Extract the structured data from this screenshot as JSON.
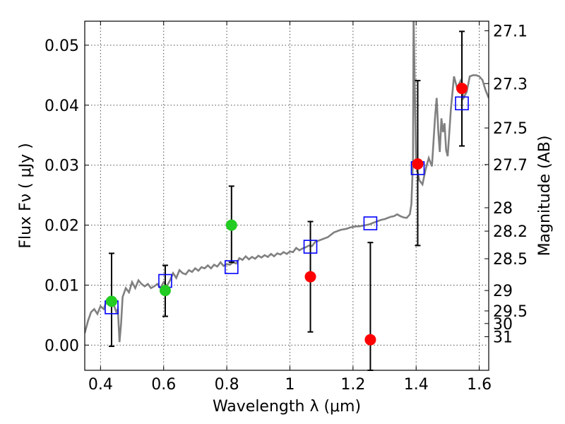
{
  "chart_data": {
    "type": "scatter",
    "xlabel": "Wavelength  λ (μm)",
    "ylabel": "Flux  Fν  ( μJy )",
    "ylabel_right": "Magnitude (AB)",
    "xlim": [
      0.35,
      1.63
    ],
    "ylim": [
      -0.0042,
      0.054
    ],
    "grid": true,
    "x_ticks": [
      0.4,
      0.6,
      0.8,
      1.0,
      1.2,
      1.4,
      1.6
    ],
    "x_tick_labels": [
      "0.4",
      "0.6",
      "0.8",
      "1",
      "1.2",
      "1.4",
      "1.6"
    ],
    "y_ticks": [
      0.0,
      0.01,
      0.02,
      0.03,
      0.04,
      0.05
    ],
    "y_tick_labels": [
      "0.00",
      "0.01",
      "0.02",
      "0.03",
      "0.04",
      "0.05"
    ],
    "right_ticks": [
      {
        "label": "27.1",
        "flux": 0.0524
      },
      {
        "label": "27.3",
        "flux": 0.0436
      },
      {
        "label": "27.5",
        "flux": 0.0362
      },
      {
        "label": "27.7",
        "flux": 0.0301
      },
      {
        "label": "28",
        "flux": 0.0229
      },
      {
        "label": "28.2",
        "flux": 0.019
      },
      {
        "label": "28.5",
        "flux": 0.0144
      },
      {
        "label": "29",
        "flux": 0.0091
      },
      {
        "label": "29.5",
        "flux": 0.0057
      },
      {
        "label": "30",
        "flux": 0.0036
      },
      {
        "label": "31",
        "flux": 0.0014
      }
    ],
    "series": [
      {
        "kind": "model_spectrum",
        "color": "#808080",
        "points": [
          [
            0.35,
            0.002
          ],
          [
            0.36,
            0.004
          ],
          [
            0.37,
            0.0055
          ],
          [
            0.38,
            0.006
          ],
          [
            0.39,
            0.0052
          ],
          [
            0.4,
            0.0065
          ],
          [
            0.41,
            0.006
          ],
          [
            0.42,
            0.0075
          ],
          [
            0.43,
            0.0068
          ],
          [
            0.44,
            0.007
          ],
          [
            0.45,
            0.0055
          ],
          [
            0.455,
            0.006
          ],
          [
            0.46,
            0.0005
          ],
          [
            0.465,
            0.0035
          ],
          [
            0.47,
            0.008
          ],
          [
            0.48,
            0.0095
          ],
          [
            0.49,
            0.0088
          ],
          [
            0.5,
            0.0105
          ],
          [
            0.51,
            0.0095
          ],
          [
            0.52,
            0.0108
          ],
          [
            0.53,
            0.0102
          ],
          [
            0.54,
            0.0098
          ],
          [
            0.55,
            0.0102
          ],
          [
            0.56,
            0.0095
          ],
          [
            0.57,
            0.0098
          ],
          [
            0.58,
            0.0102
          ],
          [
            0.59,
            0.0095
          ],
          [
            0.6,
            0.0105
          ],
          [
            0.61,
            0.0098
          ],
          [
            0.62,
            0.0108
          ],
          [
            0.63,
            0.012
          ],
          [
            0.64,
            0.0112
          ],
          [
            0.65,
            0.0125
          ],
          [
            0.66,
            0.012
          ],
          [
            0.67,
            0.0118
          ],
          [
            0.68,
            0.0125
          ],
          [
            0.69,
            0.0122
          ],
          [
            0.7,
            0.0128
          ],
          [
            0.71,
            0.0124
          ],
          [
            0.72,
            0.013
          ],
          [
            0.73,
            0.0128
          ],
          [
            0.74,
            0.0133
          ],
          [
            0.75,
            0.0128
          ],
          [
            0.76,
            0.0134
          ],
          [
            0.77,
            0.0131
          ],
          [
            0.78,
            0.0138
          ],
          [
            0.79,
            0.0132
          ],
          [
            0.8,
            0.0135
          ],
          [
            0.81,
            0.0134
          ],
          [
            0.82,
            0.0138
          ],
          [
            0.83,
            0.0136
          ],
          [
            0.84,
            0.0145
          ],
          [
            0.85,
            0.0142
          ],
          [
            0.86,
            0.0148
          ],
          [
            0.87,
            0.0143
          ],
          [
            0.88,
            0.0147
          ],
          [
            0.89,
            0.0144
          ],
          [
            0.9,
            0.0149
          ],
          [
            0.91,
            0.0146
          ],
          [
            0.92,
            0.015
          ],
          [
            0.93,
            0.0147
          ],
          [
            0.94,
            0.0152
          ],
          [
            0.95,
            0.0148
          ],
          [
            0.96,
            0.0153
          ],
          [
            0.97,
            0.0151
          ],
          [
            0.98,
            0.0155
          ],
          [
            0.99,
            0.0152
          ],
          [
            1.0,
            0.0156
          ],
          [
            1.01,
            0.0155
          ],
          [
            1.02,
            0.0162
          ],
          [
            1.03,
            0.0158
          ],
          [
            1.04,
            0.0161
          ],
          [
            1.05,
            0.0163
          ],
          [
            1.06,
            0.0166
          ],
          [
            1.07,
            0.0165
          ],
          [
            1.08,
            0.0172
          ],
          [
            1.09,
            0.0174
          ],
          [
            1.1,
            0.0176
          ],
          [
            1.11,
            0.0178
          ],
          [
            1.12,
            0.018
          ],
          [
            1.13,
            0.0184
          ],
          [
            1.14,
            0.0188
          ],
          [
            1.15,
            0.019
          ],
          [
            1.16,
            0.0192
          ],
          [
            1.17,
            0.0193
          ],
          [
            1.18,
            0.0194
          ],
          [
            1.19,
            0.0196
          ],
          [
            1.2,
            0.0197
          ],
          [
            1.21,
            0.0198
          ],
          [
            1.22,
            0.0198
          ],
          [
            1.23,
            0.0199
          ],
          [
            1.24,
            0.02
          ],
          [
            1.25,
            0.0201
          ],
          [
            1.26,
            0.0203
          ],
          [
            1.27,
            0.0205
          ],
          [
            1.28,
            0.0207
          ],
          [
            1.29,
            0.0209
          ],
          [
            1.3,
            0.021
          ],
          [
            1.31,
            0.0212
          ],
          [
            1.32,
            0.0214
          ],
          [
            1.33,
            0.0215
          ],
          [
            1.34,
            0.0218
          ],
          [
            1.35,
            0.0215
          ],
          [
            1.36,
            0.0213
          ],
          [
            1.37,
            0.0212
          ],
          [
            1.38,
            0.0218
          ],
          [
            1.385,
            0.0235
          ],
          [
            1.39,
            0.031
          ],
          [
            1.392,
            0.055
          ],
          [
            1.395,
            0.045
          ],
          [
            1.4,
            0.03
          ],
          [
            1.41,
            0.0275
          ],
          [
            1.42,
            0.0268
          ],
          [
            1.43,
            0.0293
          ],
          [
            1.44,
            0.0312
          ],
          [
            1.45,
            0.0298
          ],
          [
            1.46,
            0.038
          ],
          [
            1.465,
            0.0412
          ],
          [
            1.47,
            0.0358
          ],
          [
            1.475,
            0.0322
          ],
          [
            1.48,
            0.0378
          ],
          [
            1.485,
            0.0355
          ],
          [
            1.49,
            0.037
          ],
          [
            1.495,
            0.0325
          ],
          [
            1.5,
            0.0315
          ],
          [
            1.51,
            0.0393
          ],
          [
            1.52,
            0.0448
          ],
          [
            1.53,
            0.0428
          ],
          [
            1.54,
            0.044
          ],
          [
            1.55,
            0.0412
          ],
          [
            1.56,
            0.0422
          ],
          [
            1.57,
            0.0448
          ],
          [
            1.58,
            0.045
          ],
          [
            1.59,
            0.045
          ],
          [
            1.6,
            0.0448
          ],
          [
            1.61,
            0.0442
          ],
          [
            1.62,
            0.0425
          ],
          [
            1.63,
            0.0412
          ]
        ]
      },
      {
        "kind": "model_photometry",
        "marker": "open-square",
        "color": "#0000ff",
        "x": [
          0.435,
          0.605,
          0.815,
          1.065,
          1.255,
          1.405,
          1.545
        ],
        "y": [
          0.0063,
          0.0107,
          0.013,
          0.0164,
          0.0203,
          0.0295,
          0.0403
        ]
      },
      {
        "kind": "photometry",
        "marker": "filled-circle",
        "color": "#22cc22",
        "x": [
          0.435,
          0.605,
          0.815
        ],
        "y": [
          0.0073,
          0.0091,
          0.02
        ],
        "err_low": [
          -0.0002,
          0.0048,
          0.0138
        ],
        "err_high": [
          0.0153,
          0.0133,
          0.0265
        ]
      },
      {
        "kind": "photometry",
        "marker": "filled-circle",
        "color": "#ff0000",
        "x": [
          1.065,
          1.255,
          1.405,
          1.545
        ],
        "y": [
          0.0114,
          0.0009,
          0.0302,
          0.0428
        ],
        "err_low": [
          0.0022,
          -0.0042,
          0.0166,
          0.0332
        ],
        "err_high": [
          0.0206,
          0.0171,
          0.0441,
          0.0523
        ]
      }
    ]
  }
}
